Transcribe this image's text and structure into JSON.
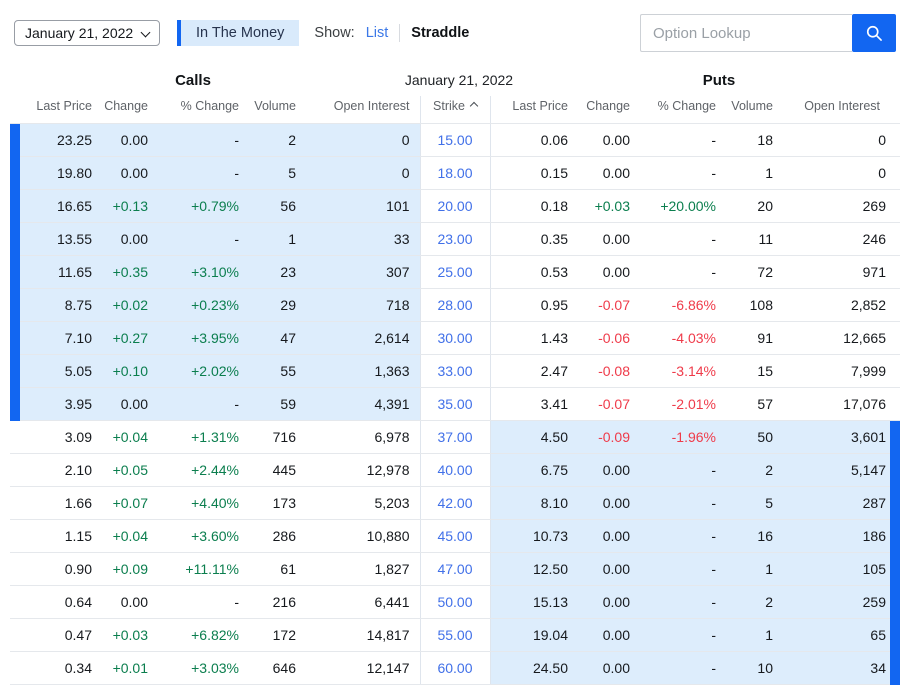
{
  "toolbar": {
    "date_value": "January 21, 2022",
    "in_the_money_label": "In The Money",
    "show_label": "Show:",
    "list_label": "List",
    "straddle_label": "Straddle",
    "lookup_placeholder": "Option Lookup"
  },
  "table": {
    "calls_title": "Calls",
    "expiration_title": "January 21, 2022",
    "puts_title": "Puts",
    "strike_header": "Strike",
    "columns": [
      "Last Price",
      "Change",
      "% Change",
      "Volume",
      "Open Interest"
    ],
    "rows": [
      {
        "calls": [
          "23.25",
          "0.00",
          "-",
          "2",
          "0"
        ],
        "strike": "15.00",
        "puts": [
          "0.06",
          "0.00",
          "-",
          "18",
          "0"
        ],
        "calls_itm": true,
        "puts_itm": false
      },
      {
        "calls": [
          "19.80",
          "0.00",
          "-",
          "5",
          "0"
        ],
        "strike": "18.00",
        "puts": [
          "0.15",
          "0.00",
          "-",
          "1",
          "0"
        ],
        "calls_itm": true,
        "puts_itm": false
      },
      {
        "calls": [
          "16.65",
          "+0.13",
          "+0.79%",
          "56",
          "101"
        ],
        "strike": "20.00",
        "puts": [
          "0.18",
          "+0.03",
          "+20.00%",
          "20",
          "269"
        ],
        "calls_itm": true,
        "puts_itm": false
      },
      {
        "calls": [
          "13.55",
          "0.00",
          "-",
          "1",
          "33"
        ],
        "strike": "23.00",
        "puts": [
          "0.35",
          "0.00",
          "-",
          "11",
          "246"
        ],
        "calls_itm": true,
        "puts_itm": false
      },
      {
        "calls": [
          "11.65",
          "+0.35",
          "+3.10%",
          "23",
          "307"
        ],
        "strike": "25.00",
        "puts": [
          "0.53",
          "0.00",
          "-",
          "72",
          "971"
        ],
        "calls_itm": true,
        "puts_itm": false
      },
      {
        "calls": [
          "8.75",
          "+0.02",
          "+0.23%",
          "29",
          "718"
        ],
        "strike": "28.00",
        "puts": [
          "0.95",
          "-0.07",
          "-6.86%",
          "108",
          "2,852"
        ],
        "calls_itm": true,
        "puts_itm": false
      },
      {
        "calls": [
          "7.10",
          "+0.27",
          "+3.95%",
          "47",
          "2,614"
        ],
        "strike": "30.00",
        "puts": [
          "1.43",
          "-0.06",
          "-4.03%",
          "91",
          "12,665"
        ],
        "calls_itm": true,
        "puts_itm": false
      },
      {
        "calls": [
          "5.05",
          "+0.10",
          "+2.02%",
          "55",
          "1,363"
        ],
        "strike": "33.00",
        "puts": [
          "2.47",
          "-0.08",
          "-3.14%",
          "15",
          "7,999"
        ],
        "calls_itm": true,
        "puts_itm": false
      },
      {
        "calls": [
          "3.95",
          "0.00",
          "-",
          "59",
          "4,391"
        ],
        "strike": "35.00",
        "puts": [
          "3.41",
          "-0.07",
          "-2.01%",
          "57",
          "17,076"
        ],
        "calls_itm": true,
        "puts_itm": false
      },
      {
        "calls": [
          "3.09",
          "+0.04",
          "+1.31%",
          "716",
          "6,978"
        ],
        "strike": "37.00",
        "puts": [
          "4.50",
          "-0.09",
          "-1.96%",
          "50",
          "3,601"
        ],
        "calls_itm": false,
        "puts_itm": true
      },
      {
        "calls": [
          "2.10",
          "+0.05",
          "+2.44%",
          "445",
          "12,978"
        ],
        "strike": "40.00",
        "puts": [
          "6.75",
          "0.00",
          "-",
          "2",
          "5,147"
        ],
        "calls_itm": false,
        "puts_itm": true
      },
      {
        "calls": [
          "1.66",
          "+0.07",
          "+4.40%",
          "173",
          "5,203"
        ],
        "strike": "42.00",
        "puts": [
          "8.10",
          "0.00",
          "-",
          "5",
          "287"
        ],
        "calls_itm": false,
        "puts_itm": true
      },
      {
        "calls": [
          "1.15",
          "+0.04",
          "+3.60%",
          "286",
          "10,880"
        ],
        "strike": "45.00",
        "puts": [
          "10.73",
          "0.00",
          "-",
          "16",
          "186"
        ],
        "calls_itm": false,
        "puts_itm": true
      },
      {
        "calls": [
          "0.90",
          "+0.09",
          "+11.11%",
          "61",
          "1,827"
        ],
        "strike": "47.00",
        "puts": [
          "12.50",
          "0.00",
          "-",
          "1",
          "105"
        ],
        "calls_itm": false,
        "puts_itm": true
      },
      {
        "calls": [
          "0.64",
          "0.00",
          "-",
          "216",
          "6,441"
        ],
        "strike": "50.00",
        "puts": [
          "15.13",
          "0.00",
          "-",
          "2",
          "259"
        ],
        "calls_itm": false,
        "puts_itm": true
      },
      {
        "calls": [
          "0.47",
          "+0.03",
          "+6.82%",
          "172",
          "14,817"
        ],
        "strike": "55.00",
        "puts": [
          "19.04",
          "0.00",
          "-",
          "1",
          "65"
        ],
        "calls_itm": false,
        "puts_itm": true
      },
      {
        "calls": [
          "0.34",
          "+0.01",
          "+3.03%",
          "646",
          "12,147"
        ],
        "strike": "60.00",
        "puts": [
          "24.50",
          "0.00",
          "-",
          "10",
          "34"
        ],
        "calls_itm": false,
        "puts_itm": true
      }
    ]
  },
  "colors": {
    "accent_blue": "#1266f1",
    "link_blue": "#3b78e7",
    "strike_link_blue": "#4170e8",
    "positive_green": "#0b7e4e",
    "negative_red": "#ef3b4a",
    "itm_row_bg": "#ddedfc",
    "badge_bg": "#d9eafb"
  }
}
